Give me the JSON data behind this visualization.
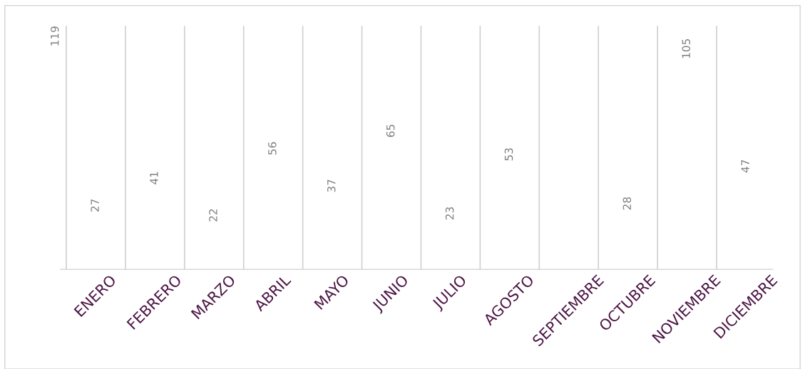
{
  "chart_data": {
    "type": "other",
    "categories": [
      "ENERO",
      "FEBRERO",
      "MARZO",
      "ABRIL",
      "MAYO",
      "JUNIO",
      "JULIO",
      "AGOSTO",
      "SEPTIEMBRE",
      "OCTUBRE",
      "NOVIEMBRE",
      "DICIEMBRE"
    ],
    "values": [
      27,
      41,
      22,
      56,
      37,
      65,
      23,
      53,
      null,
      28,
      105,
      47
    ],
    "data_labels": true,
    "annotations": [
      "119"
    ]
  }
}
